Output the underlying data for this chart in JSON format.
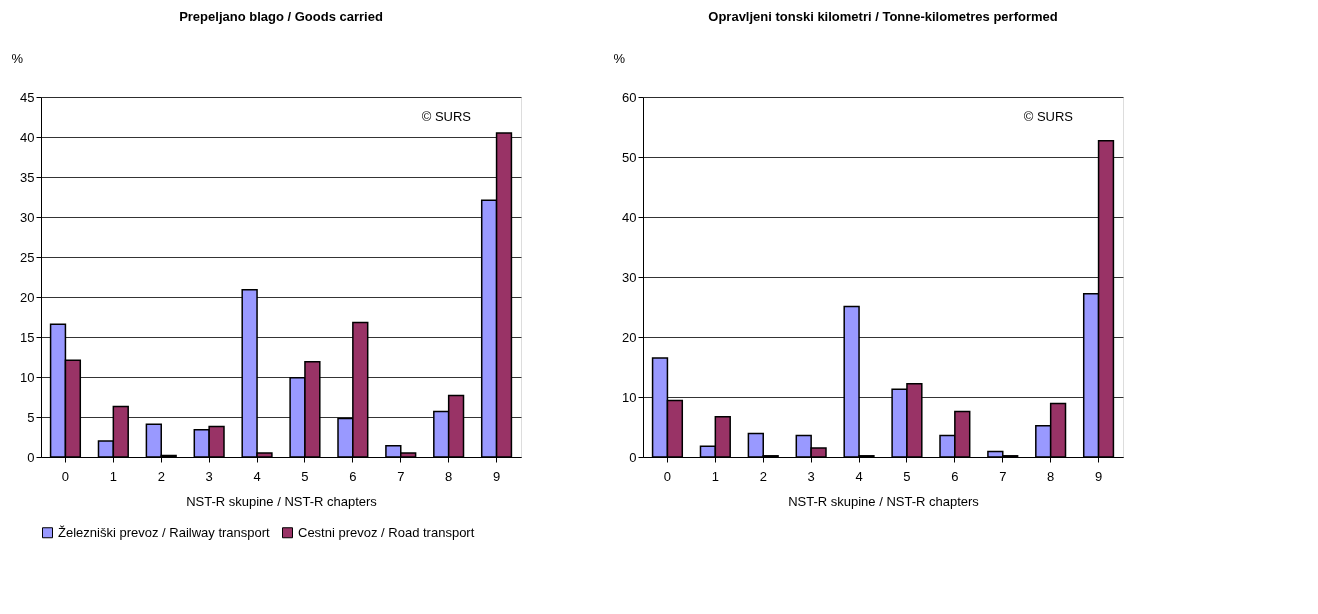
{
  "chart_data": [
    {
      "type": "bar",
      "title": "Prepeljano blago / Goods carried",
      "xlabel": "NST-R skupine / NST-R chapters",
      "ylabel": "%",
      "categories": [
        "0",
        "1",
        "2",
        "3",
        "4",
        "5",
        "6",
        "7",
        "8",
        "9"
      ],
      "series": [
        {
          "name": "Železniški prevoz / Railway transport",
          "color": "#9999ff",
          "values": [
            16.6,
            2.0,
            4.1,
            3.4,
            20.9,
            9.9,
            4.8,
            1.4,
            5.7,
            32.1
          ]
        },
        {
          "name": "Cestni prevoz / Road transport",
          "color": "#993366",
          "values": [
            12.1,
            6.3,
            0.2,
            3.8,
            0.5,
            11.9,
            16.8,
            0.5,
            7.7,
            40.5
          ]
        }
      ],
      "ylim": [
        0,
        45
      ],
      "yticks": [
        0,
        5,
        10,
        15,
        20,
        25,
        30,
        35,
        40,
        45
      ],
      "grid": "y",
      "legend": "bottom",
      "annotations": [
        "© SURS"
      ]
    },
    {
      "type": "bar",
      "title": "Opravljeni tonski kilometri / Tonne-kilometres performed",
      "xlabel": "NST-R skupine / NST-R chapters",
      "ylabel": "%",
      "categories": [
        "0",
        "1",
        "2",
        "3",
        "4",
        "5",
        "6",
        "7",
        "8",
        "9"
      ],
      "series": [
        {
          "color": "#9999ff",
          "values": [
            16.5,
            1.8,
            3.9,
            3.6,
            25.1,
            11.3,
            3.6,
            0.9,
            5.2,
            27.2
          ]
        },
        {
          "color": "#993366",
          "values": [
            9.4,
            6.7,
            0.2,
            1.5,
            0.2,
            12.2,
            7.6,
            0.2,
            8.9,
            52.7
          ]
        }
      ],
      "ylim": [
        0,
        60
      ],
      "yticks": [
        0,
        10,
        20,
        30,
        40,
        50,
        60
      ],
      "grid": "y",
      "legend": false,
      "annotations": [
        "© SURS"
      ]
    }
  ]
}
